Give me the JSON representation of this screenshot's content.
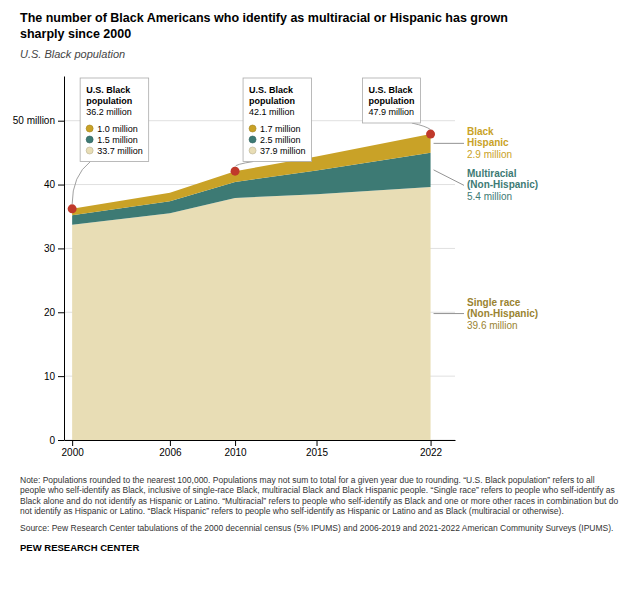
{
  "chart_data": {
    "type": "area",
    "stacked": true,
    "grid": true,
    "title": "The number of Black Americans who identify as multiracial or Hispanic has grown\nsharply since 2000",
    "subtitle": "U.S. Black population",
    "x": [
      2000,
      2006,
      2010,
      2015,
      2022
    ],
    "xlim": [
      1999.5,
      2023.5
    ],
    "xticks": [
      2000,
      2006,
      2010,
      2015,
      2022
    ],
    "ylim": [
      0,
      57
    ],
    "yticks": [
      0,
      10,
      20,
      30,
      40,
      {
        "value": 50,
        "label": "50 million"
      }
    ],
    "series": [
      {
        "name": "Single race\n(Non-Hispanic)",
        "color": "#e8ddb5",
        "values": [
          33.7,
          35.5,
          37.9,
          38.5,
          39.6
        ],
        "value_labels": [
          "33.7 million",
          null,
          "37.9 million",
          null,
          "39.6 million"
        ]
      },
      {
        "name": "Multiracial\n(Non-Hispanic)",
        "color": "#3d7a74",
        "values": [
          1.5,
          1.9,
          2.5,
          3.7,
          5.4
        ],
        "value_labels": [
          "1.5 million",
          null,
          "2.5 million",
          null,
          "5.4 million"
        ]
      },
      {
        "name": "Black\nHispanic",
        "color": "#c9a227",
        "values": [
          1.0,
          1.3,
          1.7,
          2.2,
          2.9
        ],
        "value_labels": [
          "1.0 million",
          null,
          "1.7 million",
          null,
          "2.9 million"
        ]
      }
    ],
    "annotations": [
      {
        "x": 2000,
        "value": 36.2,
        "text": "U.S. Black\npopulation",
        "value_label": "36.2 million",
        "color": "#c0392b"
      },
      {
        "x": 2010,
        "value": 42.1,
        "text": "U.S. Black\npopulation",
        "value_label": "42.1 million",
        "color": "#c0392b"
      },
      {
        "x": 2022,
        "value": 47.9,
        "text": "U.S. Black\npopulation",
        "value_label": "47.9 million",
        "color": "#c0392b"
      }
    ],
    "note": "Note: Populations rounded to the nearest 100,000. Populations may not sum to total for a given year due to rounding. “U.S. Black population” refers to all people who self-identify as Black, inclusive of single-race Black, multiracial Black and Black Hispanic people. “Single race” refers to people who self-identify as Black alone and do not identify as Hispanic or Latino. “Multiracial” refers to people who self-identify as Black and one or more other races in combination but do not identify as Hispanic or Latino. “Black Hispanic” refers to people who self-identify as Hispanic or Latino and as Black (multiracial or otherwise).",
    "source": "Source: Pew Research Center tabulations of the 2000 decennial census (5% IPUMS) and 2006-2019 and 2021-2022 American Community Surveys (IPUMS).",
    "credit": "PEW RESEARCH CENTER"
  }
}
